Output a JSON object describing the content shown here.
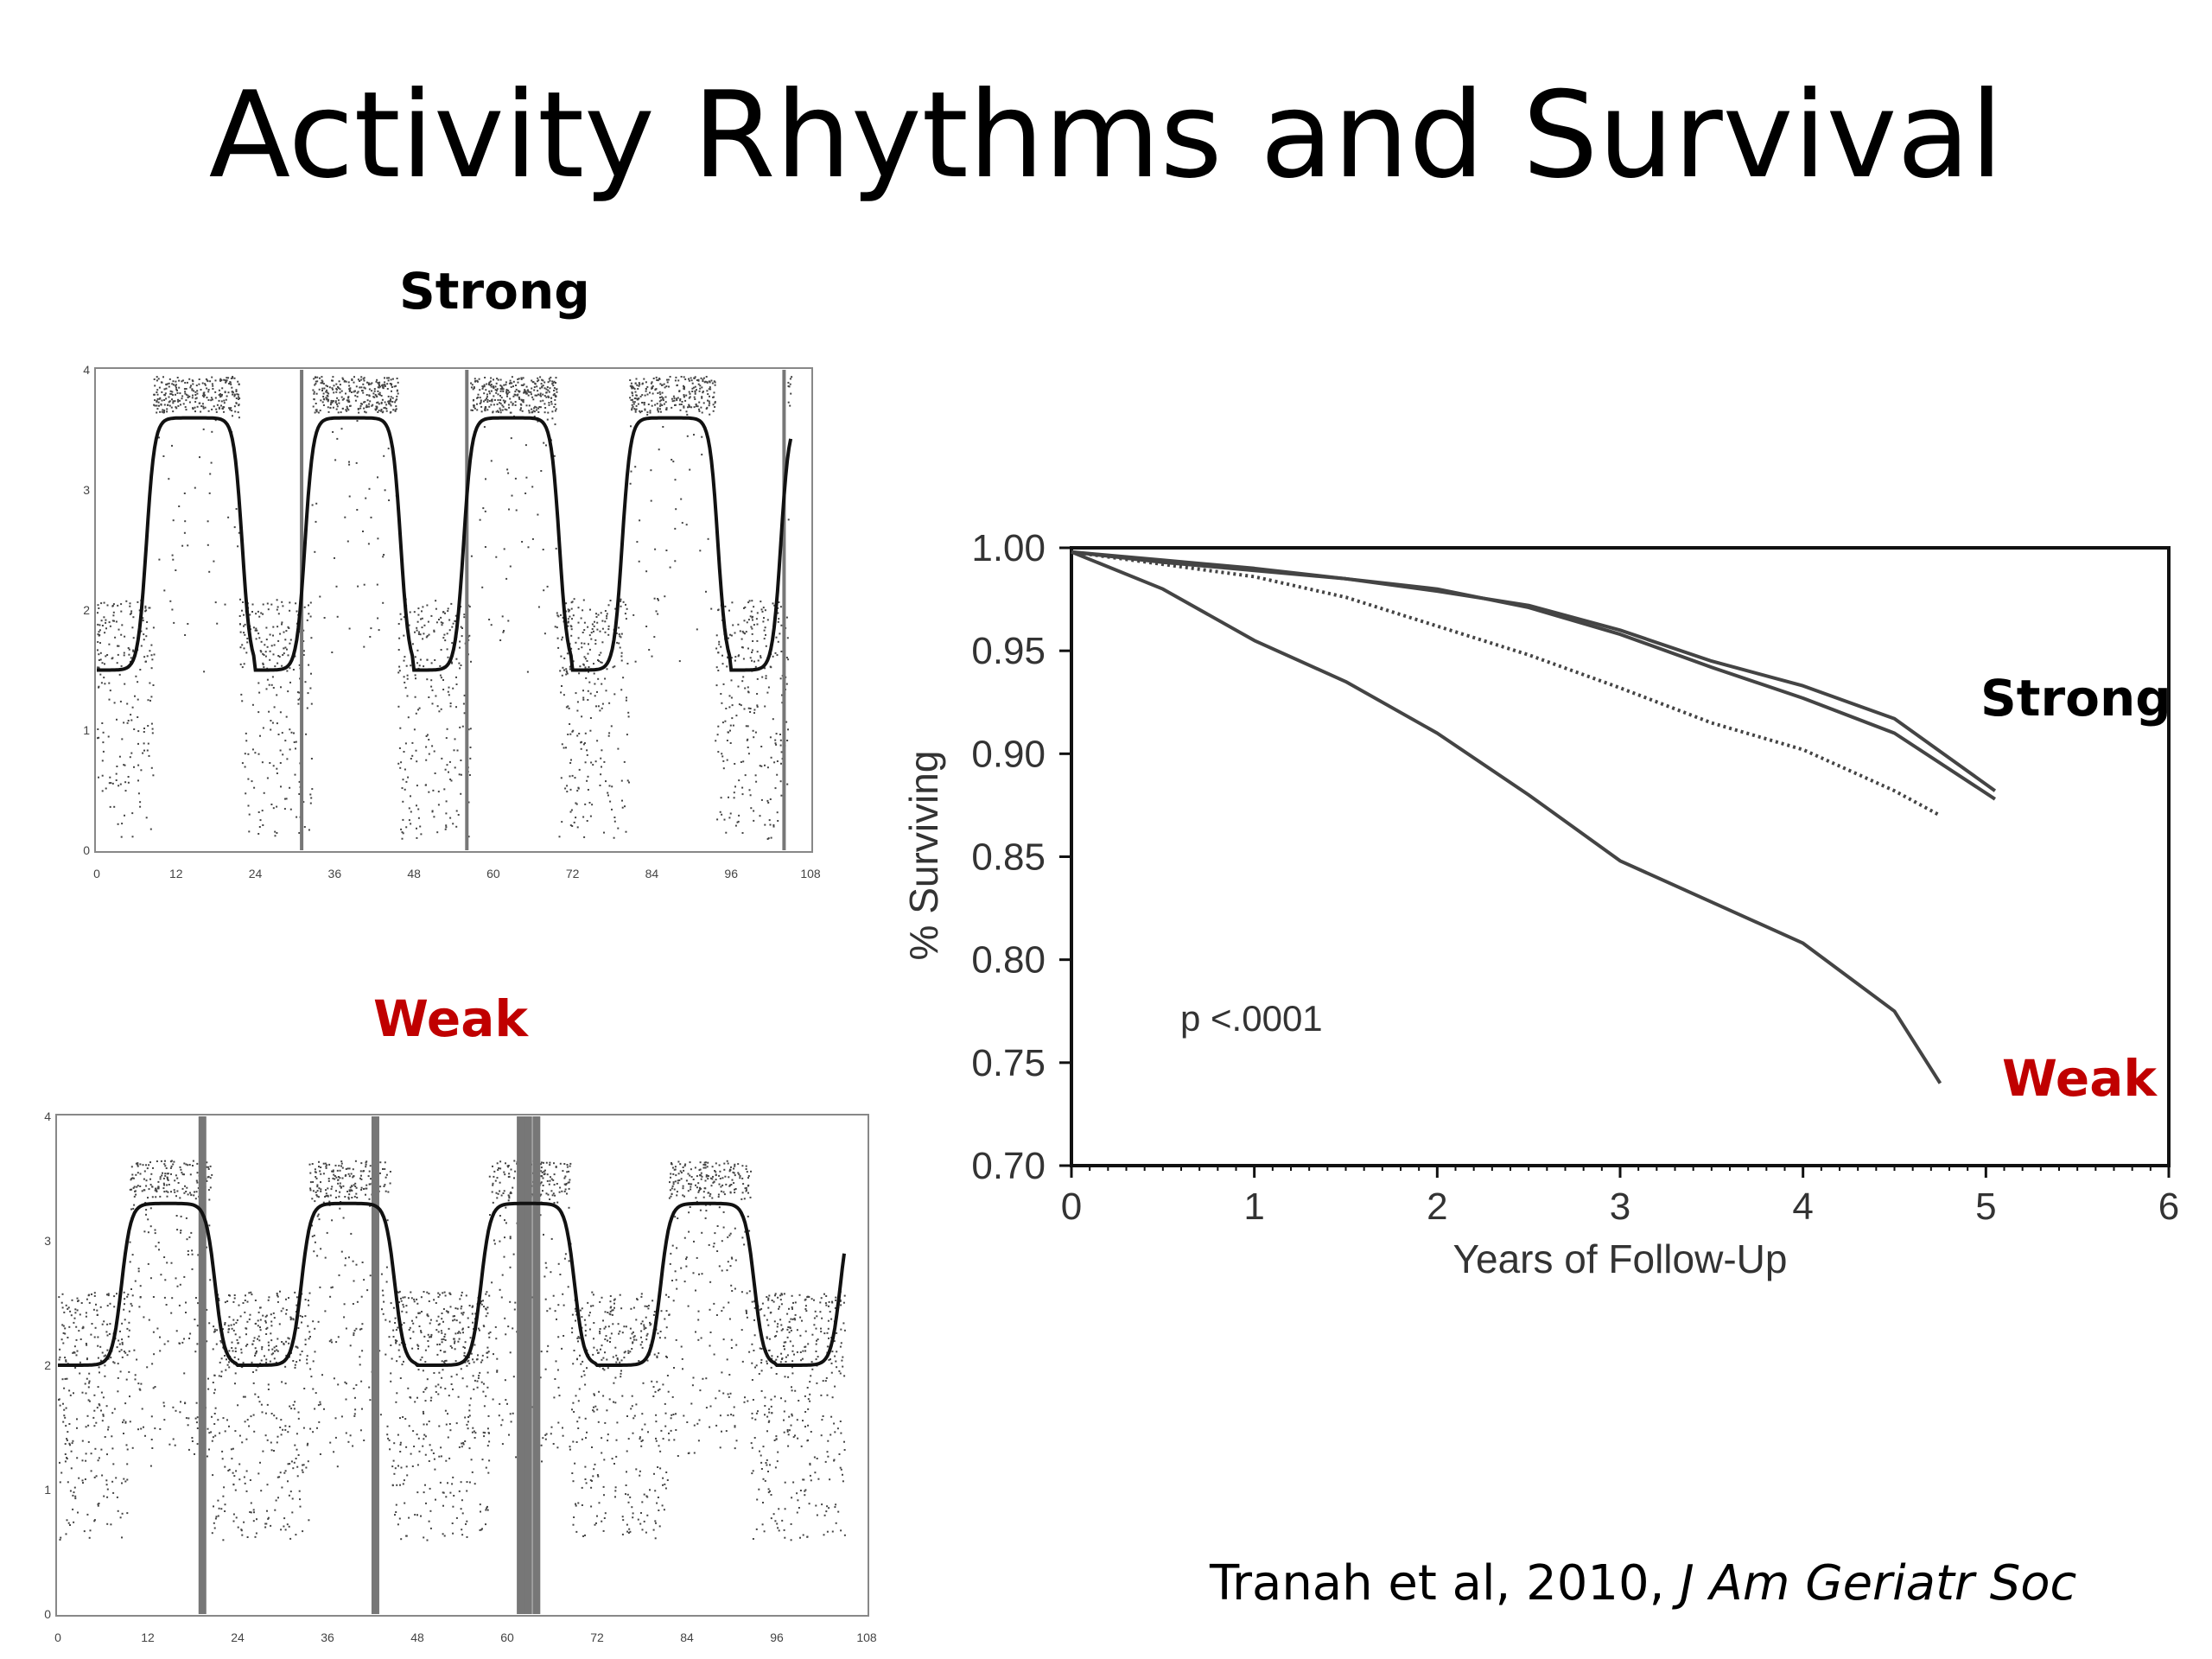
{
  "slide": {
    "title": "Activity Rhythms and Survival",
    "strong_label": "Strong",
    "weak_label": "Weak",
    "citation_text": "Tranah et al, 2010, ",
    "citation_journal": "J Am Geriatr Soc",
    "colors": {
      "text": "#000000",
      "weak": "#c00000",
      "curve": "#333333",
      "bar": "#777777"
    }
  },
  "chart_data": [
    {
      "id": "actogram-strong",
      "type": "scatter",
      "label": "Strong",
      "x_ticks": [
        "0",
        "12",
        "24",
        "36",
        "48",
        "60",
        "72",
        "84",
        "96",
        "108"
      ],
      "y_ticks": [
        "0",
        "1",
        "2",
        "3",
        "4"
      ],
      "xlim": [
        0,
        108
      ],
      "ylim": [
        0,
        4
      ],
      "fit_curve": {
        "period_hours": 24,
        "low": 1.5,
        "high": 3.6,
        "active_start_hour": 7.5,
        "active_end_hour": 22
      },
      "gap_bars_hours": [
        31,
        56,
        104
      ]
    },
    {
      "id": "actogram-weak",
      "type": "scatter",
      "label": "Weak",
      "x_ticks": [
        "0",
        "12",
        "24",
        "36",
        "48",
        "60",
        "72",
        "84",
        "96",
        "108"
      ],
      "y_ticks": [
        "0",
        "1",
        "2",
        "3",
        "4"
      ],
      "xlim": [
        0,
        108
      ],
      "ylim": [
        0,
        4
      ],
      "fit_curve": {
        "period_hours": 24,
        "low": 2.0,
        "high": 3.3,
        "active_start_hour": 8.5,
        "active_end_hour": 21
      },
      "gap_bars_hours": [
        19.3,
        42.4,
        61.8,
        62.8,
        63.9
      ]
    },
    {
      "id": "survival-curve",
      "type": "line",
      "xlabel": "Years of Follow-Up",
      "ylabel": "% Surviving",
      "xlim": [
        0,
        6
      ],
      "ylim": [
        0.7,
        1.0
      ],
      "x_ticks": [
        "0",
        "1",
        "2",
        "3",
        "4",
        "5",
        "6"
      ],
      "y_ticks": [
        "1.00",
        "0.95",
        "0.90",
        "0.85",
        "0.80",
        "0.75",
        "0.70"
      ],
      "annotation": "p <.0001",
      "series_labels": [
        "Strong",
        "Weak"
      ],
      "series": [
        {
          "style": "solid",
          "x": [
            0,
            0.5,
            1,
            1.5,
            2,
            2.5,
            3,
            3.5,
            4,
            4.5,
            5.05
          ],
          "y": [
            0.998,
            0.994,
            0.99,
            0.985,
            0.98,
            0.971,
            0.958,
            0.942,
            0.927,
            0.91,
            0.878
          ]
        },
        {
          "style": "solid",
          "x": [
            0,
            0.5,
            1,
            1.5,
            2,
            2.5,
            3,
            3.5,
            4,
            4.5,
            5.05
          ],
          "y": [
            0.998,
            0.993,
            0.989,
            0.985,
            0.979,
            0.972,
            0.96,
            0.945,
            0.933,
            0.917,
            0.882
          ]
        },
        {
          "style": "dotted",
          "x": [
            0,
            0.5,
            1,
            1.5,
            2,
            2.5,
            3,
            3.5,
            4,
            4.5,
            4.75
          ],
          "y": [
            0.998,
            0.992,
            0.986,
            0.976,
            0.962,
            0.948,
            0.932,
            0.915,
            0.902,
            0.882,
            0.87
          ]
        },
        {
          "style": "solid",
          "x": [
            0,
            0.5,
            1,
            1.5,
            2,
            2.5,
            3,
            3.5,
            4,
            4.5,
            4.75
          ],
          "y": [
            0.998,
            0.98,
            0.955,
            0.935,
            0.91,
            0.88,
            0.848,
            0.828,
            0.808,
            0.775,
            0.74
          ]
        }
      ]
    }
  ]
}
